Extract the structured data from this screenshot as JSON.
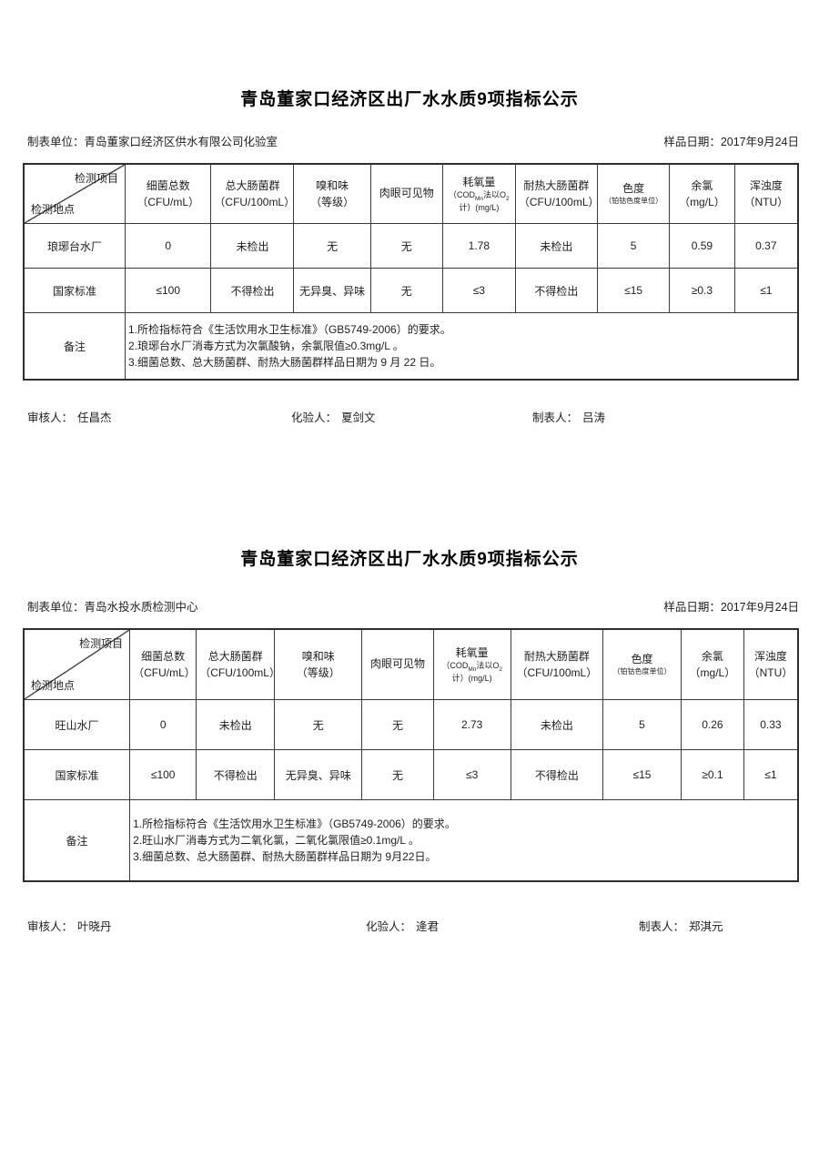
{
  "reports": [
    {
      "title": "青岛董家口经济区出厂水水质9项指标公示",
      "maker_label": "制表单位：",
      "maker": "青岛董家口经济区供水有限公司化验室",
      "sample_date_label": "样品日期：",
      "sample_date": "2017年9月24日",
      "diagonal": {
        "top": "检测项目",
        "bottom": "检测地点"
      },
      "columns": [
        {
          "line1": "细菌总数",
          "line2": "（CFU/mL）"
        },
        {
          "line1": "总大肠菌群",
          "line2": "（CFU/100mL）"
        },
        {
          "line1": "嗅和味",
          "line2": "（等级）"
        },
        {
          "line1": "肉眼可见物",
          "line2": ""
        },
        {
          "line1": "耗氧量",
          "cod": {
            "p1": "（COD",
            "s1": "Mn",
            "p2": "法以O",
            "s2": "2",
            "p3": "计）(mg/L)"
          }
        },
        {
          "line1": "耐热大肠菌群",
          "line2": "（CFU/100mL）"
        },
        {
          "line1": "色度",
          "line2": "（铂钴色度单位）"
        },
        {
          "line1": "余氯",
          "line2": "（mg/L）"
        },
        {
          "line1": "浑浊度",
          "line2": "（NTU）"
        }
      ],
      "rows": [
        {
          "site": "琅琊台水厂",
          "values": [
            "0",
            "未检出",
            "无",
            "无",
            "1.78",
            "未检出",
            "5",
            "0.59",
            "0.37"
          ]
        },
        {
          "site": "国家标准",
          "values": [
            "≤100",
            "不得检出",
            "无异臭、异味",
            "无",
            "≤3",
            "不得检出",
            "≤15",
            "≥0.3",
            "≤1"
          ]
        }
      ],
      "remark_label": "备注",
      "remarks": [
        "1.所检指标符合《生活饮用水卫生标准》（GB5749-2006）的要求。",
        "2.琅琊台水厂消毒方式为次氯酸钠，余氯限值≥0.3mg/L 。",
        "3.细菌总数、总大肠菌群、耐热大肠菌群样品日期为 9 月 22 日。"
      ],
      "signatures": {
        "reviewer_label": "审核人：",
        "reviewer": "任昌杰",
        "tester_label": "化验人：",
        "tester": "夏剑文",
        "tabulator_label": "制表人：",
        "tabulator": "吕涛"
      }
    },
    {
      "title": "青岛董家口经济区出厂水水质9项指标公示",
      "maker_label": "制表单位：",
      "maker": "青岛水投水质检测中心",
      "sample_date_label": "样品日期：",
      "sample_date": "2017年9月24日",
      "diagonal": {
        "top": "检测项目",
        "bottom": "检测地点"
      },
      "columns": [
        {
          "line1": "细菌总数",
          "line2": "（CFU/mL）"
        },
        {
          "line1": "总大肠菌群",
          "line2": "（CFU/100mL）"
        },
        {
          "line1": "嗅和味",
          "line2": "（等级）"
        },
        {
          "line1": "肉眼可见物",
          "line2": ""
        },
        {
          "line1": "耗氧量",
          "cod": {
            "p1": "（COD",
            "s1": "Mn",
            "p2": "法以O",
            "s2": "2",
            "p3": "计）(mg/L)"
          }
        },
        {
          "line1": "耐热大肠菌群",
          "line2": "（CFU/100mL）"
        },
        {
          "line1": "色度",
          "line2": "（铂钴色度单位）"
        },
        {
          "line1": "余氯",
          "line2": "（mg/L）"
        },
        {
          "line1": "浑浊度",
          "line2": "（NTU）"
        }
      ],
      "rows": [
        {
          "site": "旺山水厂",
          "values": [
            "0",
            "未检出",
            "无",
            "无",
            "2.73",
            "未检出",
            "5",
            "0.26",
            "0.33"
          ]
        },
        {
          "site": "国家标准",
          "values": [
            "≤100",
            "不得检出",
            "无异臭、异味",
            "无",
            "≤3",
            "不得检出",
            "≤15",
            "≥0.1",
            "≤1"
          ]
        }
      ],
      "remark_label": "备注",
      "remarks": [
        "1.所检指标符合《生活饮用水卫生标准》（GB5749-2006）的要求。",
        "2.旺山水厂消毒方式为二氧化氯，二氧化氯限值≥0.1mg/L 。",
        "3.细菌总数、总大肠菌群、耐热大肠菌群样品日期为 9月22日。"
      ],
      "signatures": {
        "reviewer_label": "审核人：",
        "reviewer": "叶晓丹",
        "tester_label": "化验人：",
        "tester": "逄君",
        "tabulator_label": "制表人：",
        "tabulator": "郑淇元"
      }
    }
  ]
}
